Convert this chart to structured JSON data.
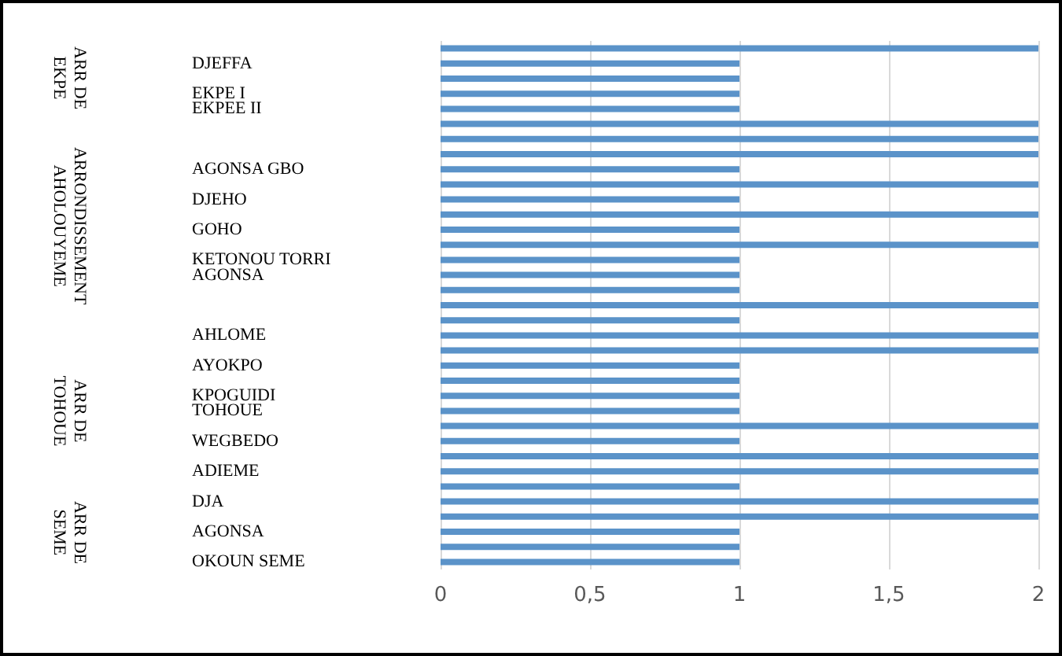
{
  "chart_data": {
    "type": "bar",
    "orientation": "horizontal",
    "categories": [
      null,
      "DJEFFA",
      null,
      "EKPE I",
      "EKPEE II",
      null,
      null,
      null,
      "AGONSA GBO",
      null,
      "DJEHO",
      null,
      "GOHO",
      null,
      "KETONOU TORRI",
      "AGONSA",
      null,
      null,
      null,
      "AHLOME",
      null,
      "AYOKPO",
      null,
      "KPOGUIDI",
      "TOHOUE",
      null,
      "WEGBEDO",
      null,
      "ADIEME",
      null,
      "DJA",
      null,
      "AGONSA",
      null,
      "OKOUN SEME"
    ],
    "values": [
      2,
      1,
      1,
      1,
      1,
      2,
      2,
      2,
      1,
      2,
      1,
      2,
      1,
      2,
      1,
      1,
      1,
      2,
      1,
      2,
      2,
      1,
      1,
      1,
      1,
      2,
      1,
      2,
      2,
      1,
      2,
      2,
      1,
      1,
      1
    ],
    "color": "#5b93c9",
    "xlim": [
      0,
      2
    ],
    "xticks": [
      0,
      {
        "value": 0.5,
        "label": "0,5"
      },
      1,
      {
        "value": 1.5,
        "label": "1,5"
      },
      2
    ],
    "grid": "x",
    "annotations": [
      "ARR DE\nEKPE",
      "ARRONDISSEMENT\nAHOLOUYEME",
      "ARR DE\nTOHOUE",
      "ARR DE\nSEME"
    ]
  }
}
